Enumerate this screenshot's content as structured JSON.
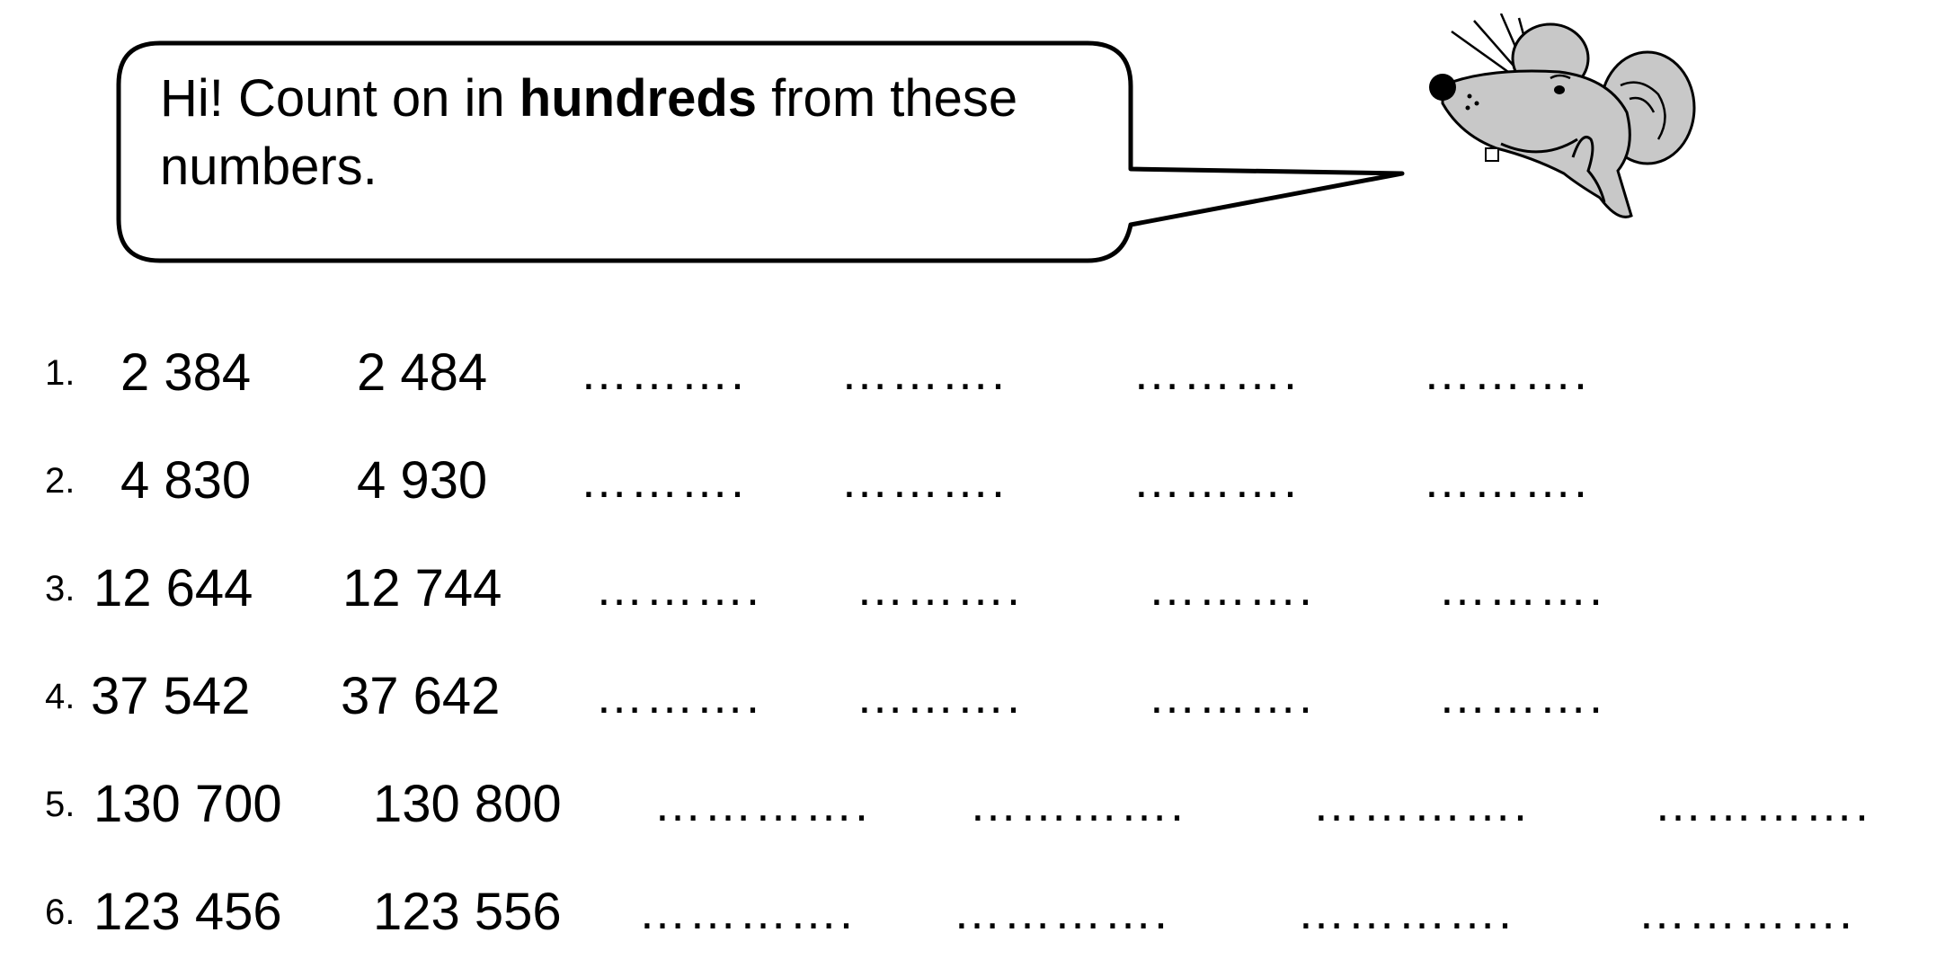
{
  "bubble": {
    "text_before": "Hi! Count on in ",
    "text_bold": "hundreds",
    "text_after": " from these numbers."
  },
  "mascot": {
    "icon": "mouse-icon"
  },
  "rows": [
    {
      "label": "1.",
      "a": "2 384",
      "b": "2 484",
      "blank": "………."
    },
    {
      "label": "2.",
      "a": "4 830",
      "b": "4 930",
      "blank": "………."
    },
    {
      "label": "3.",
      "a": "12 644",
      "b": "12 744",
      "blank": "………."
    },
    {
      "label": "4.",
      "a": "37 542",
      "b": "37 642",
      "blank": "………."
    },
    {
      "label": "5.",
      "a": "130 700",
      "b": "130 800",
      "blank": "…………."
    },
    {
      "label": "6.",
      "a": "123 456",
      "b": "123 556",
      "blank": "…………."
    }
  ]
}
